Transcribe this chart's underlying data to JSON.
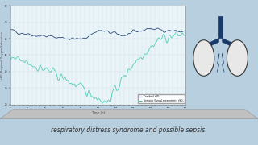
{
  "title": "",
  "xlabel": "Time (h)",
  "ylabel": "rSO₂ Regional Oxygen Saturation",
  "legend_cerebral": "Cerebral rSO₂",
  "legend_somatic": "Somatic (Renal-mesenteric) rSO₂",
  "cerebral_color": "#1a3a6b",
  "somatic_color": "#3ec9b0",
  "background_color": "#d6eaf8",
  "plot_bg": "#ffffff",
  "outer_bg": "#c8dff0",
  "text_color": "#333333",
  "bottom_text": "respiratory distress syndrome and possible sepsis.",
  "ylim": [
    20,
    80
  ],
  "xlim": [
    0,
    200
  ],
  "seed": 42
}
